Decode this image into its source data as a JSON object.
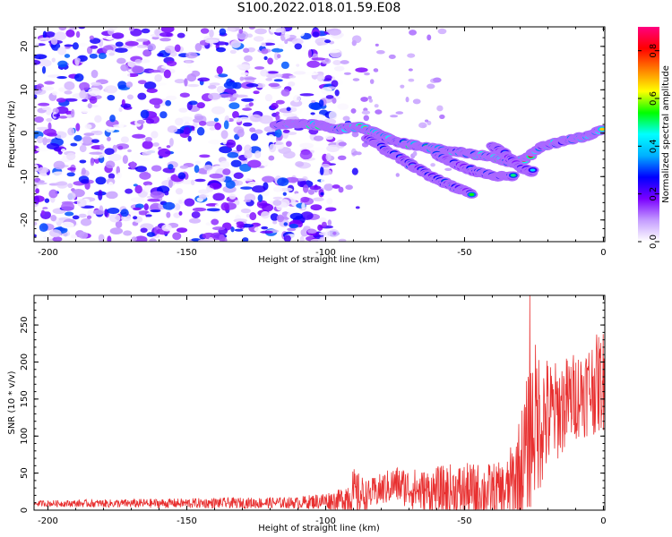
{
  "title": "S100.2022.018.01.59.E08",
  "chart_data": [
    {
      "type": "heatmap",
      "xlabel": "Height of straight line (km)",
      "ylabel": "Frequency (Hz)",
      "xlim": [
        -205,
        0.5
      ],
      "ylim": [
        -25,
        24.5
      ],
      "x_ticks": [
        -200,
        -150,
        -100,
        -50,
        0
      ],
      "y_ticks": [
        -20,
        -10,
        0,
        10,
        20
      ],
      "colorbar": {
        "label": "Normalized spectral amplitude",
        "range": [
          0,
          0.9
        ],
        "ticks": [
          0.0,
          0.2,
          0.4,
          0.6,
          0.8
        ],
        "colors": [
          "#ffffff",
          "#c49cff",
          "#7a00ff",
          "#0000ff",
          "#00b0ff",
          "#00ffff",
          "#00ff00",
          "#ffff00",
          "#ff8000",
          "#ff0000",
          "#ff0080"
        ]
      },
      "noise_region_x": [
        -205,
        -95
      ],
      "ridges": [
        {
          "points": [
            [
              -118,
              2
            ],
            [
              -105,
              2
            ],
            [
              -95,
              1
            ],
            [
              -88,
              1.5
            ],
            [
              -82,
              0
            ],
            [
              -75,
              -2
            ],
            [
              -62,
              -3.5
            ],
            [
              -50,
              -4.5
            ],
            [
              -40,
              -5.5
            ],
            [
              -33,
              -7
            ],
            [
              -28,
              -6
            ],
            [
              -22,
              -3
            ],
            [
              -12,
              -1.5
            ],
            [
              -5,
              -0.5
            ],
            [
              0,
              1
            ]
          ],
          "peak": 0.85
        },
        {
          "points": [
            [
              -85,
              -1
            ],
            [
              -78,
              -4
            ],
            [
              -70,
              -7
            ],
            [
              -62,
              -10
            ],
            [
              -55,
              -12
            ],
            [
              -47,
              -14
            ]
          ],
          "peak": 0.55
        },
        {
          "points": [
            [
              -60,
              -5
            ],
            [
              -52,
              -7.5
            ],
            [
              -45,
              -9
            ],
            [
              -38,
              -10
            ],
            [
              -32,
              -10
            ]
          ],
          "peak": 0.5
        },
        {
          "points": [
            [
              -40,
              -3
            ],
            [
              -35,
              -5
            ],
            [
              -30,
              -8
            ],
            [
              -25,
              -9
            ]
          ],
          "peak": 0.45
        }
      ]
    },
    {
      "type": "line",
      "xlabel": "Height of straight line (km)",
      "ylabel": "SNR (10 * v/v)",
      "xlim": [
        -205,
        0.5
      ],
      "ylim": [
        0,
        290
      ],
      "x_ticks": [
        -200,
        -150,
        -100,
        -50,
        0
      ],
      "y_ticks": [
        0,
        50,
        100,
        150,
        200,
        250
      ],
      "line_color": "#e83030",
      "envelope": [
        {
          "x": -205,
          "base": 9,
          "amp": 4
        },
        {
          "x": -170,
          "base": 9,
          "amp": 6
        },
        {
          "x": -110,
          "base": 10,
          "amp": 8
        },
        {
          "x": -95,
          "base": 14,
          "amp": 14
        },
        {
          "x": -90,
          "base": 22,
          "amp": 35
        },
        {
          "x": -85,
          "base": 20,
          "amp": 20
        },
        {
          "x": -75,
          "base": 35,
          "amp": 25
        },
        {
          "x": -65,
          "base": 25,
          "amp": 30
        },
        {
          "x": -55,
          "base": 25,
          "amp": 38
        },
        {
          "x": -35,
          "base": 25,
          "amp": 40
        },
        {
          "x": -30,
          "base": 50,
          "amp": 80
        },
        {
          "x": -25,
          "base": 120,
          "amp": 110
        },
        {
          "x": -18,
          "base": 130,
          "amp": 70
        },
        {
          "x": -10,
          "base": 155,
          "amp": 60
        },
        {
          "x": 0,
          "base": 175,
          "amp": 70
        }
      ],
      "max": {
        "x": -26.5,
        "y": 290
      }
    }
  ]
}
